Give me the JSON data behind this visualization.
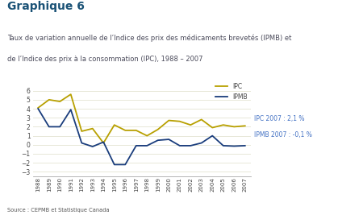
{
  "years": [
    1988,
    1989,
    1990,
    1991,
    1992,
    1993,
    1994,
    1995,
    1996,
    1997,
    1998,
    1999,
    2000,
    2001,
    2002,
    2003,
    2004,
    2005,
    2006,
    2007
  ],
  "IPC": [
    4.1,
    5.0,
    4.8,
    5.6,
    1.5,
    1.8,
    0.2,
    2.2,
    1.6,
    1.6,
    1.0,
    1.7,
    2.7,
    2.6,
    2.2,
    2.8,
    1.9,
    2.2,
    2.0,
    2.1
  ],
  "IPMB": [
    4.0,
    2.0,
    2.0,
    3.9,
    0.2,
    -0.2,
    0.3,
    -2.2,
    -2.2,
    -0.1,
    -0.1,
    0.5,
    0.6,
    -0.1,
    -0.1,
    0.2,
    1.0,
    -0.1,
    -0.15,
    -0.1
  ],
  "IPC_color": "#b8a000",
  "IPMB_color": "#1a3d7c",
  "annotation_color": "#4472c4",
  "title_main": "Graphique 6",
  "title_color": "#1a5276",
  "subtitle_color": "#4a4a5a",
  "title_sub1": "Taux de variation annuelle de l’Indice des prix des médicaments brevetés (IPMB) et",
  "title_sub2": "de l’Indice des prix à la consommation (IPC), 1988 – 2007",
  "source": "Source : CEPMB et Statistique Canada",
  "ylim": [
    -3.5,
    7.0
  ],
  "yticks": [
    -3,
    -2,
    -1,
    0,
    1,
    2,
    3,
    4,
    5,
    6
  ],
  "legend_IPC": "IPC",
  "legend_IPMB": "IPMB",
  "annot_IPC": "IPC 2007 : 2,1 %",
  "annot_IPMB": "IPMB 2007 : -0,1 %",
  "bg_color": "#ffffff",
  "grid_color": "#e8e8d8"
}
